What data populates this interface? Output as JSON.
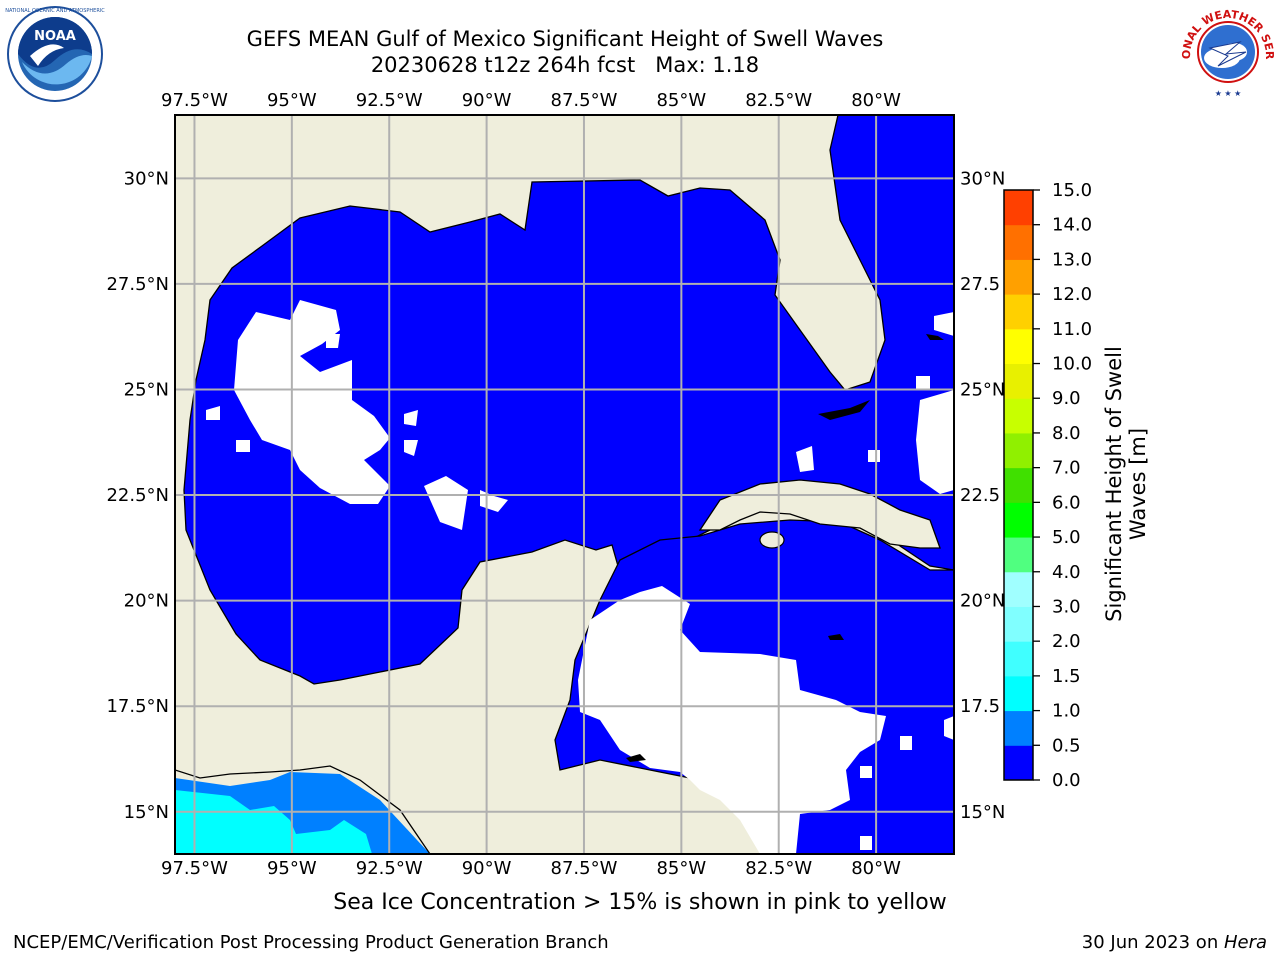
{
  "title": {
    "line1": "GEFS MEAN Gulf of Mexico Significant Height of Swell Waves",
    "line2": "20230628 t12z 264h fcst   Max: 1.18"
  },
  "logos": {
    "noaa": "NOAA",
    "nws": "NATIONAL WEATHER SERVICE"
  },
  "map": {
    "lon_range": [
      -98.0,
      -78.0
    ],
    "lat_range": [
      14.0,
      31.5
    ],
    "lon_ticks": [
      -97.5,
      -95,
      -92.5,
      -90,
      -87.5,
      -85,
      -82.5,
      -80
    ],
    "lon_labels": [
      "97.5°W",
      "95°W",
      "92.5°W",
      "90°W",
      "87.5°W",
      "85°W",
      "82.5°W",
      "80°W"
    ],
    "lat_ticks": [
      15,
      17.5,
      20,
      22.5,
      25,
      27.5,
      30
    ],
    "lat_labels": [
      "15°N",
      "17.5°N",
      "20°N",
      "22.5°N",
      "25°N",
      "27.5°N",
      "30°N"
    ],
    "lat_labels_right": [
      "15°N",
      "17.5",
      "20°N",
      "22.5",
      "25°N",
      "27.5",
      "30°N"
    ],
    "grid": true,
    "colors": {
      "land": "#efeedc",
      "swell_0_0.5": "#0000ff",
      "swell_0.5_1.0": "#0080ff",
      "swell_1.0_1.5": "#00ffff",
      "no_data": "#ffffff"
    }
  },
  "colorbar": {
    "label": "Significant Height of Swell Waves [m]",
    "ticks": [
      "0.0",
      "0.5",
      "1.0",
      "1.5",
      "2.0",
      "3.0",
      "4.0",
      "5.0",
      "6.0",
      "7.0",
      "8.0",
      "9.0",
      "10.0",
      "11.0",
      "12.0",
      "13.0",
      "14.0",
      "15.0"
    ],
    "colors": [
      "#0000ff",
      "#0080ff",
      "#00ffff",
      "#40ffff",
      "#80ffff",
      "#a0ffff",
      "#50ff80",
      "#00ff00",
      "#40e000",
      "#90f000",
      "#c8ff00",
      "#e8f000",
      "#ffff00",
      "#ffd000",
      "#ffa000",
      "#ff7000",
      "#ff4000",
      "#ff0000"
    ]
  },
  "caption": "Sea Ice Concentration > 15% is shown in pink to yellow",
  "footer": {
    "left": "NCEP/EMC/Verification Post Processing Product Generation Branch",
    "date": "30 Jun 2023 on ",
    "machine": "Hera"
  }
}
